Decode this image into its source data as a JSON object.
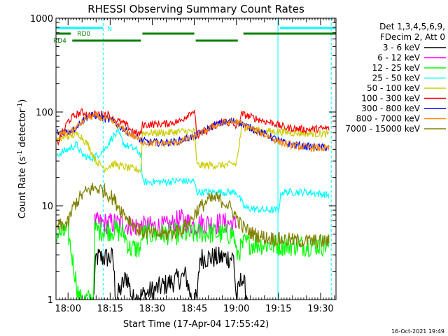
{
  "chart_data": {
    "type": "line",
    "title": "RHESSI Observing Summary Count Rates",
    "xlabel": "Start Time (17-Apr-04 17:55:42)",
    "ylabel_main": "Count Rate (s",
    "ylabel_sup1": "-1",
    "ylabel_mid": " detector",
    "ylabel_sup2": "-1",
    "ylabel_end": ")",
    "y_scale": "log",
    "ylim": [
      1,
      1000
    ],
    "xlim_minutes": [
      -4.3,
      95.5
    ],
    "x_ticks": [
      {
        "label": "18:00",
        "m": 0
      },
      {
        "label": "18:15",
        "m": 15
      },
      {
        "label": "18:30",
        "m": 30
      },
      {
        "label": "18:45",
        "m": 45
      },
      {
        "label": "19:00",
        "m": 60
      },
      {
        "label": "19:15",
        "m": 75
      },
      {
        "label": "19:30",
        "m": 90
      }
    ],
    "y_ticks": [
      {
        "label": "1",
        "v": 1
      },
      {
        "label": "10",
        "v": 10
      },
      {
        "label": "100",
        "v": 100
      },
      {
        "label": "1000",
        "v": 1000
      }
    ],
    "legend_title": [
      "Det 1,3,4,5,6,9,",
      "FDecim 2, Att 0"
    ],
    "legend_placement": "right",
    "timestamp": "16-Oct-2021 19:49",
    "flag_bars": [
      {
        "label": "N",
        "color": "#00ffff",
        "segments": [
          [
            -4.3,
            12.5
          ],
          [
            75.5,
            95.5
          ]
        ]
      },
      {
        "label": "RD0",
        "color": "#008000",
        "segments": [
          [
            -4.3,
            1.0
          ],
          [
            26.5,
            45.0
          ],
          [
            62.5,
            95.5
          ]
        ]
      },
      {
        "label": "RD4",
        "color": "#008000",
        "segments": [
          [
            1.5,
            26.0
          ],
          [
            45.5,
            60.5
          ]
        ]
      }
    ],
    "night_boundaries": [
      {
        "m": -4.3,
        "style": "solid"
      },
      {
        "m": 12.5,
        "style": "dashed"
      },
      {
        "m": 74.8,
        "style": "solid"
      },
      {
        "m": 93.8,
        "style": "dashed"
      }
    ],
    "series": [
      {
        "name": "3 - 6 keV",
        "color": "#000000",
        "points": [
          [
            9,
            1
          ],
          [
            10,
            2.8
          ],
          [
            16,
            2.8
          ],
          [
            17,
            1
          ],
          [
            21,
            1.8
          ],
          [
            23,
            1
          ],
          [
            42,
            1.8
          ],
          [
            44,
            1
          ],
          [
            46,
            1
          ],
          [
            47,
            2.8
          ],
          [
            59,
            2.8
          ],
          [
            60,
            1
          ],
          [
            62,
            1.8
          ],
          [
            64,
            1
          ]
        ]
      },
      {
        "name": "6 - 12 keV",
        "color": "#ff00ff",
        "points": [
          [
            9.5,
            6.5
          ],
          [
            17,
            6.5
          ],
          [
            26,
            6.0
          ],
          [
            36,
            6.0
          ],
          [
            40,
            7.2
          ],
          [
            45,
            6.2
          ],
          [
            48,
            6.5
          ],
          [
            58,
            6.5
          ],
          [
            60,
            6.2
          ]
        ]
      },
      {
        "name": "12 - 25 keV",
        "color": "#00ff00",
        "points": [
          [
            -4,
            5
          ],
          [
            0,
            5.2
          ],
          [
            4,
            1
          ],
          [
            9,
            1
          ],
          [
            9.5,
            5.5
          ],
          [
            17,
            5.5
          ],
          [
            20,
            5
          ],
          [
            22,
            3.5
          ],
          [
            26,
            3.5
          ],
          [
            26.5,
            5
          ],
          [
            44,
            5
          ],
          [
            46,
            5
          ],
          [
            48,
            5.2
          ],
          [
            55,
            5
          ],
          [
            59,
            5
          ],
          [
            60,
            3
          ],
          [
            63,
            4
          ],
          [
            75,
            3.8
          ],
          [
            93,
            3.8
          ]
        ]
      },
      {
        "name": "25 - 50 keV",
        "color": "#00ffff",
        "points": [
          [
            -4,
            35
          ],
          [
            0,
            40
          ],
          [
            3,
            45
          ],
          [
            5,
            35
          ],
          [
            8,
            32
          ],
          [
            10,
            34
          ],
          [
            13,
            40
          ],
          [
            16,
            55
          ],
          [
            18,
            60
          ],
          [
            20,
            45
          ],
          [
            24,
            40
          ],
          [
            26,
            35
          ],
          [
            26.5,
            18
          ],
          [
            35,
            18
          ],
          [
            40,
            18.5
          ],
          [
            45,
            18
          ],
          [
            46,
            14
          ],
          [
            55,
            14
          ],
          [
            60,
            14
          ],
          [
            63,
            9.5
          ],
          [
            70,
            9
          ],
          [
            75,
            9
          ],
          [
            76,
            14
          ],
          [
            80,
            14
          ],
          [
            85,
            14
          ],
          [
            93,
            13
          ]
        ]
      },
      {
        "name": "50 - 100 keV",
        "color": "#cccc00",
        "points": [
          [
            -4,
            50
          ],
          [
            0,
            55
          ],
          [
            4,
            58
          ],
          [
            7,
            45
          ],
          [
            10,
            30
          ],
          [
            13,
            25
          ],
          [
            16,
            28
          ],
          [
            18,
            27
          ],
          [
            22,
            25
          ],
          [
            26,
            24
          ],
          [
            26.5,
            60
          ],
          [
            35,
            60
          ],
          [
            40,
            62
          ],
          [
            45,
            62
          ],
          [
            46,
            27
          ],
          [
            55,
            27
          ],
          [
            60,
            28
          ],
          [
            62,
            70
          ],
          [
            70,
            62
          ],
          [
            75,
            62
          ],
          [
            80,
            60
          ],
          [
            93,
            58
          ]
        ]
      },
      {
        "name": "100 - 300 keV",
        "color": "#ff0000",
        "points": [
          [
            -4,
            45
          ],
          [
            0,
            80
          ],
          [
            2,
            90
          ],
          [
            5,
            100
          ],
          [
            8,
            92
          ],
          [
            10,
            95
          ],
          [
            14,
            95
          ],
          [
            16,
            85
          ],
          [
            20,
            75
          ],
          [
            24,
            60
          ],
          [
            26,
            58
          ],
          [
            26.5,
            73
          ],
          [
            35,
            75
          ],
          [
            40,
            80
          ],
          [
            44,
            102
          ],
          [
            45,
            100
          ],
          [
            46,
            55
          ],
          [
            50,
            65
          ],
          [
            55,
            80
          ],
          [
            58,
            75
          ],
          [
            60,
            70
          ],
          [
            62,
            95
          ],
          [
            70,
            80
          ],
          [
            74,
            75
          ],
          [
            75,
            72
          ],
          [
            78,
            68
          ],
          [
            85,
            65
          ],
          [
            93,
            67
          ]
        ]
      },
      {
        "name": "300 - 800 keV",
        "color": "#0000ff",
        "points": [
          [
            -4,
            60
          ],
          [
            0,
            62
          ],
          [
            2,
            65
          ],
          [
            5,
            80
          ],
          [
            7,
            90
          ],
          [
            10,
            92
          ],
          [
            13,
            85
          ],
          [
            16,
            80
          ],
          [
            20,
            65
          ],
          [
            24,
            55
          ],
          [
            26,
            50
          ],
          [
            28,
            48
          ],
          [
            33,
            47
          ],
          [
            38,
            48
          ],
          [
            42,
            52
          ],
          [
            45,
            55
          ],
          [
            48,
            62
          ],
          [
            52,
            72
          ],
          [
            56,
            78
          ],
          [
            60,
            80
          ],
          [
            64,
            70
          ],
          [
            68,
            62
          ],
          [
            72,
            55
          ],
          [
            76,
            48
          ],
          [
            80,
            45
          ],
          [
            85,
            43
          ],
          [
            90,
            42
          ],
          [
            93,
            42
          ]
        ]
      },
      {
        "name": "800 - 7000 keV",
        "color": "#ff8800",
        "points": [
          [
            -4,
            58
          ],
          [
            0,
            60
          ],
          [
            2,
            64
          ],
          [
            5,
            78
          ],
          [
            7,
            88
          ],
          [
            10,
            90
          ],
          [
            13,
            85
          ],
          [
            16,
            78
          ],
          [
            20,
            64
          ],
          [
            24,
            54
          ],
          [
            26,
            49
          ],
          [
            28,
            47
          ],
          [
            33,
            46
          ],
          [
            38,
            47
          ],
          [
            42,
            51
          ],
          [
            45,
            54
          ],
          [
            48,
            61
          ],
          [
            52,
            71
          ],
          [
            56,
            77
          ],
          [
            60,
            79
          ],
          [
            64,
            69
          ],
          [
            68,
            61
          ],
          [
            72,
            54
          ],
          [
            76,
            47
          ],
          [
            80,
            44
          ],
          [
            85,
            42
          ],
          [
            90,
            41
          ],
          [
            93,
            41
          ]
        ]
      },
      {
        "name": "7000 - 15000 keV",
        "color": "#808000",
        "points": [
          [
            -4,
            6.0
          ],
          [
            0,
            6.5
          ],
          [
            2,
            10
          ],
          [
            5,
            13
          ],
          [
            8,
            15
          ],
          [
            10,
            15.5
          ],
          [
            13,
            14.5
          ],
          [
            16,
            12
          ],
          [
            19,
            9
          ],
          [
            22,
            7
          ],
          [
            25,
            5.5
          ],
          [
            27,
            5.2
          ],
          [
            30,
            5.0
          ],
          [
            35,
            5.0
          ],
          [
            40,
            5.5
          ],
          [
            43,
            6.5
          ],
          [
            46,
            9
          ],
          [
            50,
            11.5
          ],
          [
            53,
            12
          ],
          [
            56,
            11
          ],
          [
            59,
            8.5
          ],
          [
            62,
            6
          ],
          [
            66,
            5
          ],
          [
            70,
            4.6
          ],
          [
            75,
            4.4
          ],
          [
            80,
            4.3
          ],
          [
            85,
            4.2
          ],
          [
            93,
            4.2
          ]
        ]
      }
    ]
  }
}
